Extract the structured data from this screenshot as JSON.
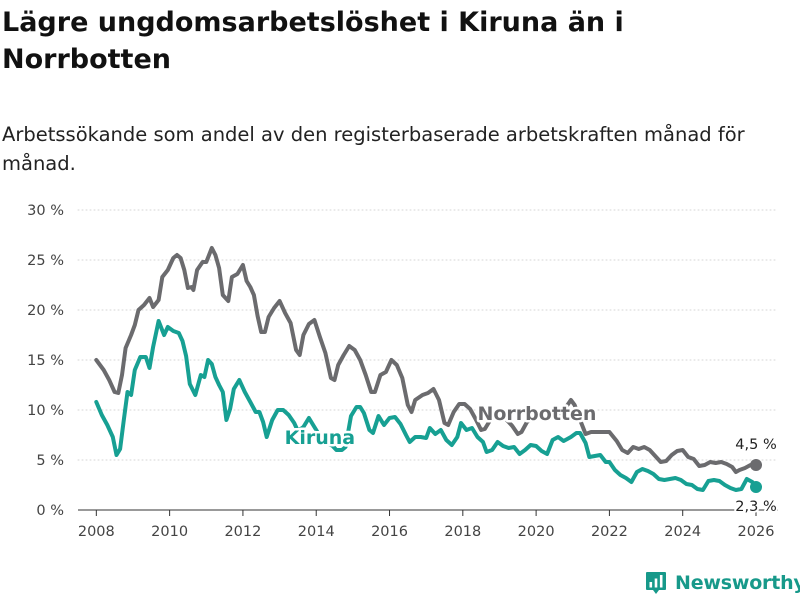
{
  "header": {
    "title": "Lägre ungdomsarbetslöshet i Kiruna än i Norrbotten",
    "subtitle": "Arbetssökande som andel av den registerbaserade arbetskraften månad för månad."
  },
  "brand": {
    "name": "Newsworthy",
    "color": "#17998a"
  },
  "chart_data": {
    "type": "line",
    "title": "Lägre ungdomsarbetslöshet i Kiruna än i Norrbotten",
    "subtitle": "Arbetssökande som andel av den registerbaserade arbetskraften månad för månad.",
    "xlabel": "",
    "ylabel": "",
    "xlim": [
      2007.5,
      2026.6
    ],
    "ylim": [
      0,
      30
    ],
    "x_ticks": [
      2008,
      2010,
      2012,
      2014,
      2016,
      2018,
      2020,
      2022,
      2024,
      2026
    ],
    "x_tick_labels": [
      "2008",
      "2010",
      "2012",
      "2014",
      "2016",
      "2018",
      "2020",
      "2022",
      "2024",
      "2026"
    ],
    "y_ticks": [
      0,
      5,
      10,
      15,
      20,
      25,
      30
    ],
    "y_tick_labels": [
      "0 %",
      "5 %",
      "10 %",
      "15 %",
      "20 %",
      "25 %",
      "30 %"
    ],
    "grid": true,
    "series": [
      {
        "name": "Norrbotten",
        "color": "#6b6b6e",
        "label_text": "Norrbotten",
        "label_at": [
          2018.4,
          9.8
        ],
        "end_label": "4,5 %",
        "end_value": 4.5,
        "points": [
          [
            2008.0,
            15.0
          ],
          [
            2008.2,
            14.0
          ],
          [
            2008.35,
            13.0
          ],
          [
            2008.5,
            11.8
          ],
          [
            2008.6,
            11.7
          ],
          [
            2008.7,
            13.5
          ],
          [
            2008.8,
            16.2
          ],
          [
            2008.95,
            17.5
          ],
          [
            2009.05,
            18.5
          ],
          [
            2009.15,
            20.0
          ],
          [
            2009.3,
            20.5
          ],
          [
            2009.45,
            21.2
          ],
          [
            2009.55,
            20.3
          ],
          [
            2009.7,
            21.0
          ],
          [
            2009.8,
            23.3
          ],
          [
            2009.95,
            24.0
          ],
          [
            2010.1,
            25.2
          ],
          [
            2010.2,
            25.5
          ],
          [
            2010.3,
            25.2
          ],
          [
            2010.4,
            24.0
          ],
          [
            2010.5,
            22.2
          ],
          [
            2010.6,
            22.3
          ],
          [
            2010.65,
            22.0
          ],
          [
            2010.75,
            24.0
          ],
          [
            2010.9,
            24.8
          ],
          [
            2011.0,
            24.8
          ],
          [
            2011.15,
            26.2
          ],
          [
            2011.25,
            25.5
          ],
          [
            2011.35,
            24.2
          ],
          [
            2011.45,
            21.5
          ],
          [
            2011.6,
            20.9
          ],
          [
            2011.7,
            23.3
          ],
          [
            2011.85,
            23.6
          ],
          [
            2012.0,
            24.5
          ],
          [
            2012.1,
            22.9
          ],
          [
            2012.2,
            22.3
          ],
          [
            2012.3,
            21.5
          ],
          [
            2012.4,
            19.4
          ],
          [
            2012.5,
            17.8
          ],
          [
            2012.6,
            17.8
          ],
          [
            2012.7,
            19.3
          ],
          [
            2012.85,
            20.2
          ],
          [
            2013.0,
            20.9
          ],
          [
            2013.15,
            19.7
          ],
          [
            2013.3,
            18.7
          ],
          [
            2013.45,
            16.0
          ],
          [
            2013.55,
            15.5
          ],
          [
            2013.65,
            17.5
          ],
          [
            2013.8,
            18.6
          ],
          [
            2013.95,
            19.0
          ],
          [
            2014.1,
            17.3
          ],
          [
            2014.25,
            15.7
          ],
          [
            2014.4,
            13.2
          ],
          [
            2014.5,
            13.0
          ],
          [
            2014.6,
            14.5
          ],
          [
            2014.75,
            15.5
          ],
          [
            2014.9,
            16.4
          ],
          [
            2015.05,
            16.0
          ],
          [
            2015.2,
            15.0
          ],
          [
            2015.35,
            13.5
          ],
          [
            2015.5,
            11.8
          ],
          [
            2015.6,
            11.8
          ],
          [
            2015.75,
            13.5
          ],
          [
            2015.9,
            13.8
          ],
          [
            2016.05,
            15.0
          ],
          [
            2016.2,
            14.5
          ],
          [
            2016.35,
            13.2
          ],
          [
            2016.5,
            10.5
          ],
          [
            2016.6,
            9.8
          ],
          [
            2016.7,
            11.0
          ],
          [
            2016.9,
            11.5
          ],
          [
            2017.05,
            11.7
          ],
          [
            2017.2,
            12.1
          ],
          [
            2017.35,
            11.0
          ],
          [
            2017.5,
            8.7
          ],
          [
            2017.6,
            8.5
          ],
          [
            2017.75,
            9.8
          ],
          [
            2017.9,
            10.6
          ],
          [
            2018.05,
            10.6
          ],
          [
            2018.2,
            10.1
          ],
          [
            2018.35,
            9.1
          ],
          [
            2018.5,
            8.0
          ],
          [
            2018.6,
            8.1
          ],
          [
            2018.75,
            9.0
          ],
          [
            2018.9,
            9.4
          ],
          [
            2019.05,
            9.5
          ],
          [
            2019.2,
            9.0
          ],
          [
            2019.35,
            8.4
          ],
          [
            2019.5,
            7.6
          ],
          [
            2019.6,
            7.8
          ],
          [
            2019.75,
            8.8
          ],
          [
            2019.9,
            9.2
          ],
          [
            2020.05,
            9.5
          ],
          [
            2020.2,
            9.3
          ],
          [
            2020.35,
            9.4
          ],
          [
            2020.5,
            9.2
          ],
          [
            2020.65,
            9.3
          ],
          [
            2020.8,
            10.2
          ],
          [
            2020.95,
            11.0
          ],
          [
            2021.05,
            10.5
          ],
          [
            2021.2,
            9.0
          ],
          [
            2021.35,
            7.6
          ],
          [
            2021.5,
            7.8
          ],
          [
            2021.7,
            7.8
          ],
          [
            2021.85,
            7.8
          ],
          [
            2022.0,
            7.8
          ],
          [
            2022.2,
            6.9
          ],
          [
            2022.35,
            6.0
          ],
          [
            2022.5,
            5.7
          ],
          [
            2022.65,
            6.3
          ],
          [
            2022.8,
            6.1
          ],
          [
            2022.95,
            6.3
          ],
          [
            2023.1,
            6.0
          ],
          [
            2023.25,
            5.4
          ],
          [
            2023.4,
            4.8
          ],
          [
            2023.55,
            4.9
          ],
          [
            2023.7,
            5.5
          ],
          [
            2023.85,
            5.9
          ],
          [
            2024.0,
            6.0
          ],
          [
            2024.15,
            5.3
          ],
          [
            2024.3,
            5.1
          ],
          [
            2024.45,
            4.4
          ],
          [
            2024.6,
            4.5
          ],
          [
            2024.75,
            4.8
          ],
          [
            2024.9,
            4.7
          ],
          [
            2025.05,
            4.8
          ],
          [
            2025.2,
            4.6
          ],
          [
            2025.35,
            4.3
          ],
          [
            2025.45,
            3.8
          ],
          [
            2025.55,
            4.0
          ],
          [
            2025.7,
            4.2
          ],
          [
            2025.85,
            4.5
          ],
          [
            2026.0,
            4.5
          ]
        ]
      },
      {
        "name": "Kiruna",
        "color": "#17a093",
        "label_text": "Kiruna",
        "label_at": [
          2014.1,
          7.4
        ],
        "end_label": "2,3 %",
        "end_value": 2.3,
        "points": [
          [
            2008.0,
            10.8
          ],
          [
            2008.15,
            9.5
          ],
          [
            2008.3,
            8.5
          ],
          [
            2008.45,
            7.3
          ],
          [
            2008.55,
            5.5
          ],
          [
            2008.65,
            6.1
          ],
          [
            2008.75,
            9.0
          ],
          [
            2008.85,
            11.8
          ],
          [
            2008.95,
            11.5
          ],
          [
            2009.05,
            14.0
          ],
          [
            2009.2,
            15.3
          ],
          [
            2009.35,
            15.3
          ],
          [
            2009.45,
            14.2
          ],
          [
            2009.55,
            16.3
          ],
          [
            2009.7,
            18.9
          ],
          [
            2009.85,
            17.5
          ],
          [
            2009.95,
            18.3
          ],
          [
            2010.1,
            17.9
          ],
          [
            2010.25,
            17.7
          ],
          [
            2010.35,
            16.9
          ],
          [
            2010.45,
            15.4
          ],
          [
            2010.55,
            12.6
          ],
          [
            2010.7,
            11.5
          ],
          [
            2010.85,
            13.5
          ],
          [
            2010.95,
            13.3
          ],
          [
            2011.05,
            15.0
          ],
          [
            2011.15,
            14.6
          ],
          [
            2011.25,
            13.3
          ],
          [
            2011.35,
            12.5
          ],
          [
            2011.45,
            11.8
          ],
          [
            2011.55,
            9.0
          ],
          [
            2011.65,
            10.1
          ],
          [
            2011.75,
            12.1
          ],
          [
            2011.9,
            13.0
          ],
          [
            2012.05,
            11.8
          ],
          [
            2012.2,
            10.8
          ],
          [
            2012.35,
            9.8
          ],
          [
            2012.45,
            9.8
          ],
          [
            2012.55,
            8.8
          ],
          [
            2012.65,
            7.3
          ],
          [
            2012.8,
            9.0
          ],
          [
            2012.95,
            10.0
          ],
          [
            2013.1,
            10.0
          ],
          [
            2013.25,
            9.5
          ],
          [
            2013.4,
            8.7
          ],
          [
            2013.5,
            7.9
          ],
          [
            2013.65,
            8.3
          ],
          [
            2013.8,
            9.2
          ],
          [
            2013.95,
            8.3
          ],
          [
            2014.1,
            7.4
          ],
          [
            2014.3,
            6.7
          ],
          [
            2014.45,
            6.4
          ],
          [
            2014.55,
            6.0
          ],
          [
            2014.7,
            6.0
          ],
          [
            2014.8,
            6.3
          ],
          [
            2014.95,
            9.4
          ],
          [
            2015.1,
            10.3
          ],
          [
            2015.2,
            10.3
          ],
          [
            2015.3,
            9.7
          ],
          [
            2015.45,
            8.0
          ],
          [
            2015.55,
            7.7
          ],
          [
            2015.7,
            9.4
          ],
          [
            2015.85,
            8.5
          ],
          [
            2016.0,
            9.2
          ],
          [
            2016.15,
            9.3
          ],
          [
            2016.3,
            8.6
          ],
          [
            2016.45,
            7.5
          ],
          [
            2016.55,
            6.8
          ],
          [
            2016.7,
            7.3
          ],
          [
            2016.85,
            7.3
          ],
          [
            2017.0,
            7.2
          ],
          [
            2017.1,
            8.2
          ],
          [
            2017.25,
            7.6
          ],
          [
            2017.4,
            8.0
          ],
          [
            2017.55,
            7.0
          ],
          [
            2017.7,
            6.5
          ],
          [
            2017.85,
            7.3
          ],
          [
            2017.95,
            8.7
          ],
          [
            2018.1,
            8.0
          ],
          [
            2018.25,
            8.2
          ],
          [
            2018.4,
            7.3
          ],
          [
            2018.55,
            6.8
          ],
          [
            2018.65,
            5.8
          ],
          [
            2018.8,
            6.0
          ],
          [
            2018.95,
            6.8
          ],
          [
            2019.1,
            6.4
          ],
          [
            2019.25,
            6.2
          ],
          [
            2019.4,
            6.3
          ],
          [
            2019.55,
            5.6
          ],
          [
            2019.7,
            6.0
          ],
          [
            2019.85,
            6.5
          ],
          [
            2020.0,
            6.4
          ],
          [
            2020.15,
            5.9
          ],
          [
            2020.3,
            5.6
          ],
          [
            2020.45,
            7.0
          ],
          [
            2020.6,
            7.3
          ],
          [
            2020.75,
            6.9
          ],
          [
            2020.85,
            7.1
          ],
          [
            2020.95,
            7.3
          ],
          [
            2021.1,
            7.7
          ],
          [
            2021.2,
            7.7
          ],
          [
            2021.35,
            6.7
          ],
          [
            2021.45,
            5.3
          ],
          [
            2021.6,
            5.4
          ],
          [
            2021.75,
            5.5
          ],
          [
            2021.9,
            4.8
          ],
          [
            2022.0,
            4.8
          ],
          [
            2022.15,
            4.0
          ],
          [
            2022.3,
            3.5
          ],
          [
            2022.45,
            3.2
          ],
          [
            2022.6,
            2.8
          ],
          [
            2022.75,
            3.8
          ],
          [
            2022.9,
            4.1
          ],
          [
            2023.05,
            3.9
          ],
          [
            2023.2,
            3.6
          ],
          [
            2023.35,
            3.1
          ],
          [
            2023.5,
            3.0
          ],
          [
            2023.65,
            3.1
          ],
          [
            2023.8,
            3.2
          ],
          [
            2023.95,
            3.0
          ],
          [
            2024.1,
            2.6
          ],
          [
            2024.25,
            2.5
          ],
          [
            2024.4,
            2.1
          ],
          [
            2024.55,
            2.0
          ],
          [
            2024.7,
            2.9
          ],
          [
            2024.85,
            3.0
          ],
          [
            2025.0,
            2.9
          ],
          [
            2025.15,
            2.5
          ],
          [
            2025.3,
            2.2
          ],
          [
            2025.45,
            2.0
          ],
          [
            2025.6,
            2.1
          ],
          [
            2025.75,
            3.1
          ],
          [
            2025.9,
            2.8
          ],
          [
            2026.0,
            2.3
          ]
        ]
      }
    ]
  }
}
